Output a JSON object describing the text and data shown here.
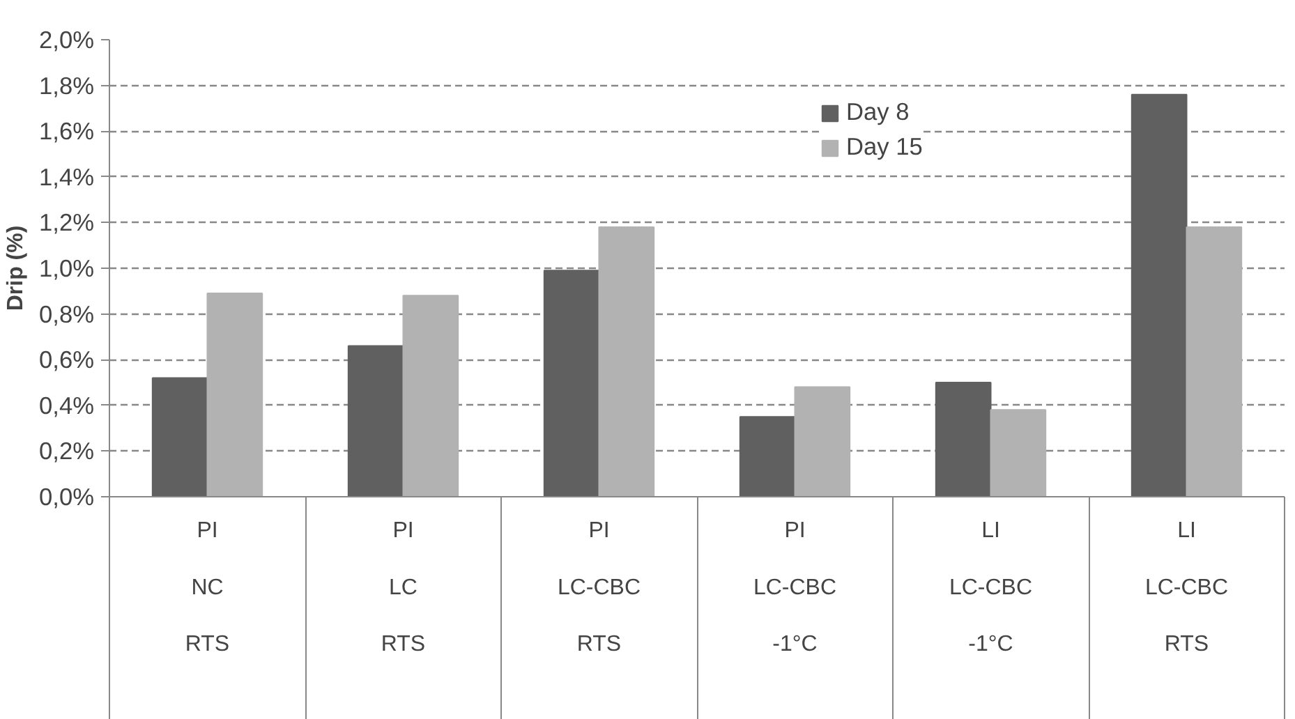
{
  "chart_data": {
    "type": "bar",
    "ylabel": "Drip (%)",
    "categories": [
      "PI\nNC\nRTS",
      "PI\nLC\nRTS",
      "PI\nLC-CBC\nRTS",
      "PI\nLC-CBC\n-1°C",
      "LI\nLC-CBC\n-1°C",
      "LI\nLC-CBC\nRTS"
    ],
    "series": [
      {
        "name": "Day 8",
        "color": "#606060",
        "values": [
          0.52,
          0.66,
          0.99,
          0.35,
          0.5,
          1.76
        ]
      },
      {
        "name": "Day 15",
        "color": "#b2b2b2",
        "values": [
          0.89,
          0.88,
          1.18,
          0.48,
          0.38,
          1.18
        ]
      }
    ],
    "ylim": [
      0,
      2.0
    ],
    "yticks": [
      {
        "value": 0,
        "label": "0,0%"
      },
      {
        "value": 0.2,
        "label": "0,2%"
      },
      {
        "value": 0.4,
        "label": "0,4%"
      },
      {
        "value": 0.6,
        "label": "0,6%"
      },
      {
        "value": 0.8,
        "label": "0,8%"
      },
      {
        "value": 1.0,
        "label": "1,0%"
      },
      {
        "value": 1.2,
        "label": "1,2%"
      },
      {
        "value": 1.4,
        "label": "1,4%"
      },
      {
        "value": 1.6,
        "label": "1,6%"
      },
      {
        "value": 1.8,
        "label": "1,8%"
      },
      {
        "value": 2.0,
        "label": "2,0%"
      }
    ],
    "grid": "y",
    "legend": "top right"
  }
}
